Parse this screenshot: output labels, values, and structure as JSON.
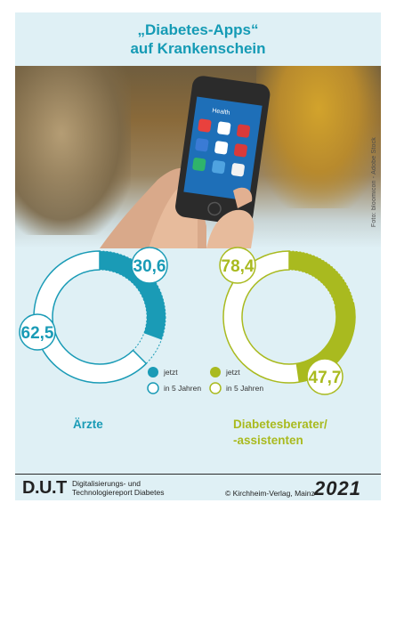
{
  "title": {
    "line1": "„Diabetes-Apps“",
    "line2": "auf Krankenschein"
  },
  "photo": {
    "credit": "Foto: bloomicon - Adobe Stock",
    "screen_title": "Health"
  },
  "colors": {
    "aerzte": "#1a9bb6",
    "berater": "#a9ba1f",
    "background": "#dff0f5",
    "title": "#159bb5"
  },
  "chart_data": [
    {
      "type": "pie",
      "group": "Ärzte",
      "series": [
        {
          "name": "jetzt",
          "value": 30.6,
          "label": "30,6"
        },
        {
          "name": "in 5 Jahren",
          "value": 62.5,
          "label": "62,5"
        }
      ],
      "color": "#1a9bb6"
    },
    {
      "type": "pie",
      "group": "Diabetesberater/ -assistenten",
      "series": [
        {
          "name": "jetzt",
          "value": 47.7,
          "label": "47,7"
        },
        {
          "name": "in 5 Jahren",
          "value": 78.4,
          "label": "78,4"
        }
      ],
      "color": "#a9ba1f"
    }
  ],
  "legend": {
    "now": "jetzt",
    "future": "in 5 Jahren"
  },
  "labels": {
    "aerzte": "Ärzte",
    "berater_line1": "Diabetesberater/",
    "berater_line2": "-assistenten"
  },
  "footer": {
    "brand": "D.U.T",
    "sub_line1": "Digitalisierungs- und",
    "sub_line2": "Technologiereport Diabetes",
    "copyright": "© Kirchheim-Verlag, Mainz",
    "year": "2021"
  }
}
